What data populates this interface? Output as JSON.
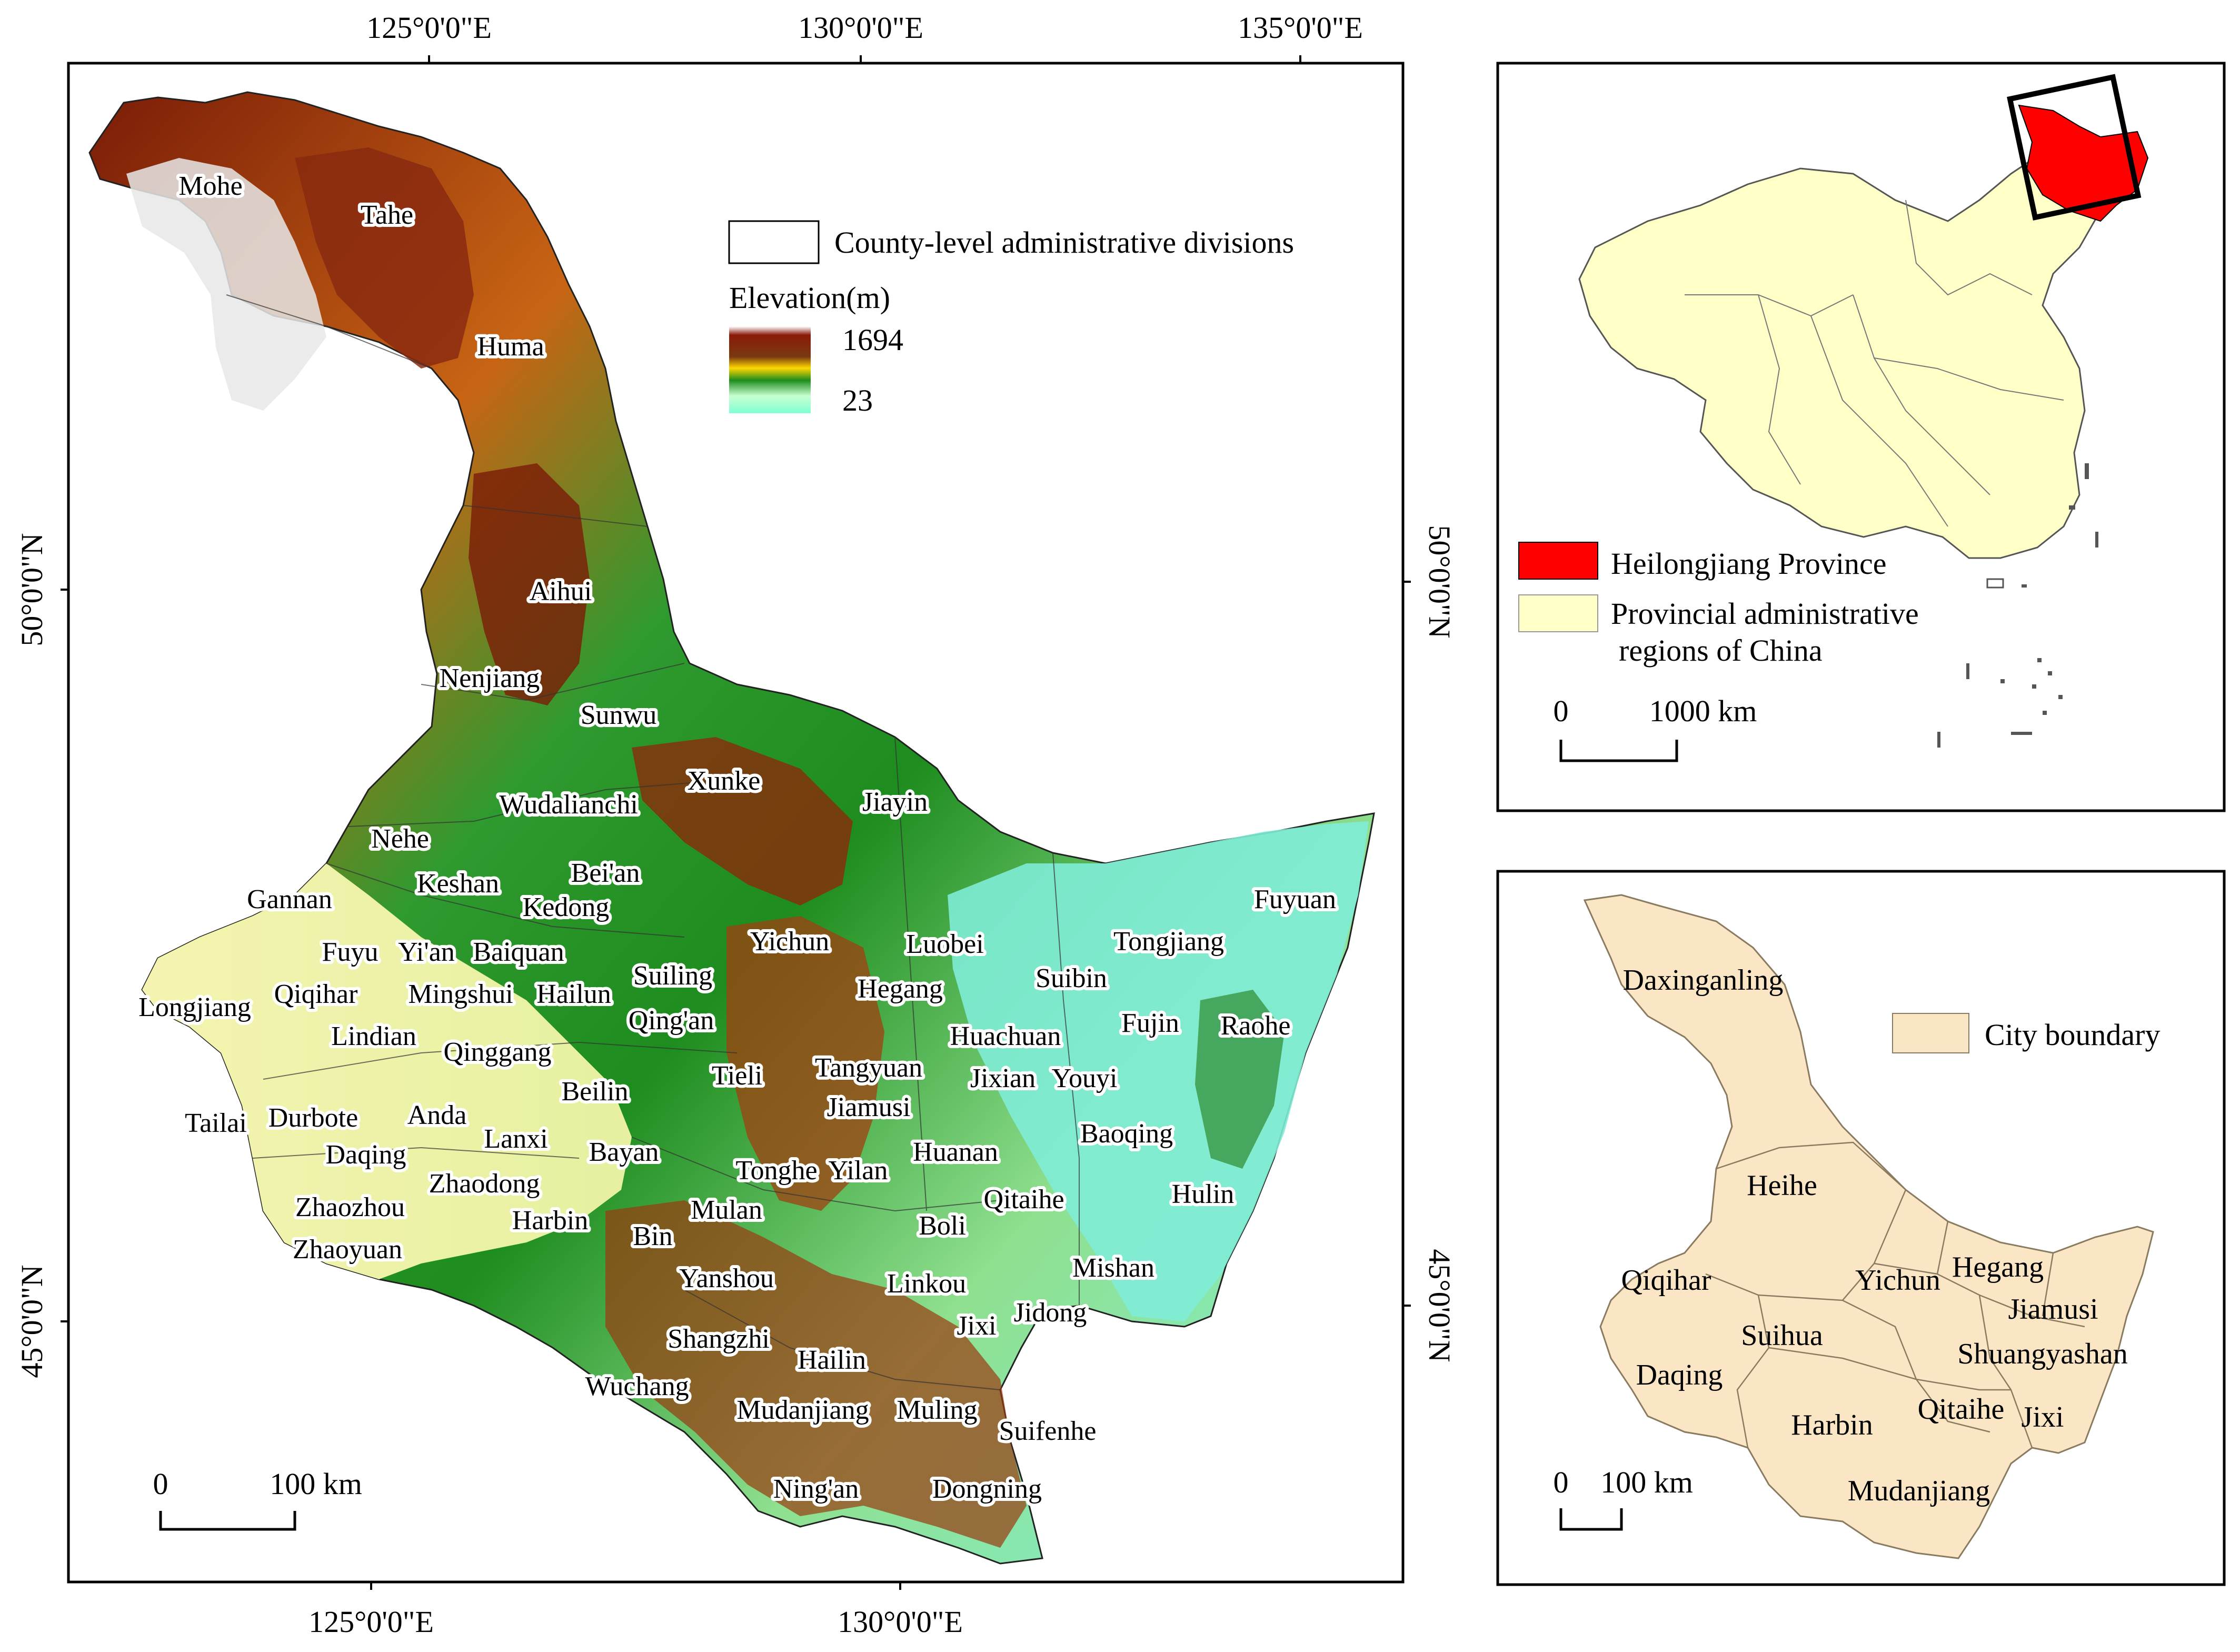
{
  "main_map": {
    "graticule_top": [
      "125°0'0\"E",
      "130°0'0\"E",
      "135°0'0\"E"
    ],
    "graticule_bottom": [
      "125°0'0\"E",
      "130°0'0\"E"
    ],
    "graticule_left": [
      "50°0'0\"N",
      "45°0'0\"N"
    ],
    "graticule_right": [
      "50°0'0\"N",
      "45°0'0\"N"
    ],
    "legend": {
      "county_label": "County-level administrative divisions",
      "elevation_title": "Elevation(m)",
      "elevation_max": "1694",
      "elevation_min": "23",
      "ramp_colors": [
        "#ffffff",
        "#8b1a0a",
        "#5a2a0a",
        "#ffd700",
        "#1e8c1e",
        "#c8ffd0",
        "#7fffd4"
      ]
    },
    "scalebar": {
      "start": "0",
      "end": "100 km"
    },
    "county_labels": [
      "Mohe",
      "Tahe",
      "Huma",
      "Aihui",
      "Nenjiang",
      "Sunwu",
      "Xunke",
      "Jiayin",
      "Wudalianchi",
      "Nehe",
      "Bei'an",
      "Keshan",
      "Kedong",
      "Gannan",
      "Fuyu",
      "Yi'an",
      "Baiquan",
      "Yichun",
      "Luobei",
      "Suiling",
      "Longjiang",
      "Qiqihar",
      "Mingshui",
      "Hailun",
      "Hegang",
      "Qing'an",
      "Lindian",
      "Qinggang",
      "Tieli",
      "Tangyuan",
      "Huachuan",
      "Jixian",
      "Youyi",
      "Tailai",
      "Durbote",
      "Anda",
      "Beilin",
      "Jiamusi",
      "Daqing",
      "Lanxi",
      "Bayan",
      "Tonghe",
      "Yilan",
      "Huanan",
      "Baoqing",
      "Zhaodong",
      "Zhaozhou",
      "Harbin",
      "Mulan",
      "Boli",
      "Qitaihe",
      "Hulin",
      "Zhaoyuan",
      "Bin",
      "Yanshou",
      "Linkou",
      "Mishan",
      "Jixi",
      "Jidong",
      "Shangzhi",
      "Hailin",
      "Wuchang",
      "Mudanjiang",
      "Muling",
      "Suifenhe",
      "Ning'an",
      "Dongning",
      "Suibin",
      "Fujin",
      "Raohe",
      "Tongjiang",
      "Fuyuan"
    ]
  },
  "inset_china": {
    "legend_heilongjiang": "Heilongjiang Province",
    "legend_provinces_line1": "Provincial administrative",
    "legend_provinces_line2": "regions of China",
    "scalebar": {
      "start": "0",
      "end": "1000 km"
    },
    "colors": {
      "heilongjiang": "#ff0000",
      "provinces": "#ffffc8"
    }
  },
  "inset_cities": {
    "legend_city": "City boundary",
    "scalebar": {
      "start": "0",
      "end": "100 km"
    },
    "city_labels": [
      "Daxinganling",
      "Heihe",
      "Qiqihar",
      "Yichun",
      "Hegang",
      "Jiamusi",
      "Suihua",
      "Shuangyashan",
      "Daqing",
      "Harbin",
      "Qitaihe",
      "Jixi",
      "Mudanjiang"
    ],
    "colors": {
      "city_fill": "#fae6c4"
    }
  }
}
